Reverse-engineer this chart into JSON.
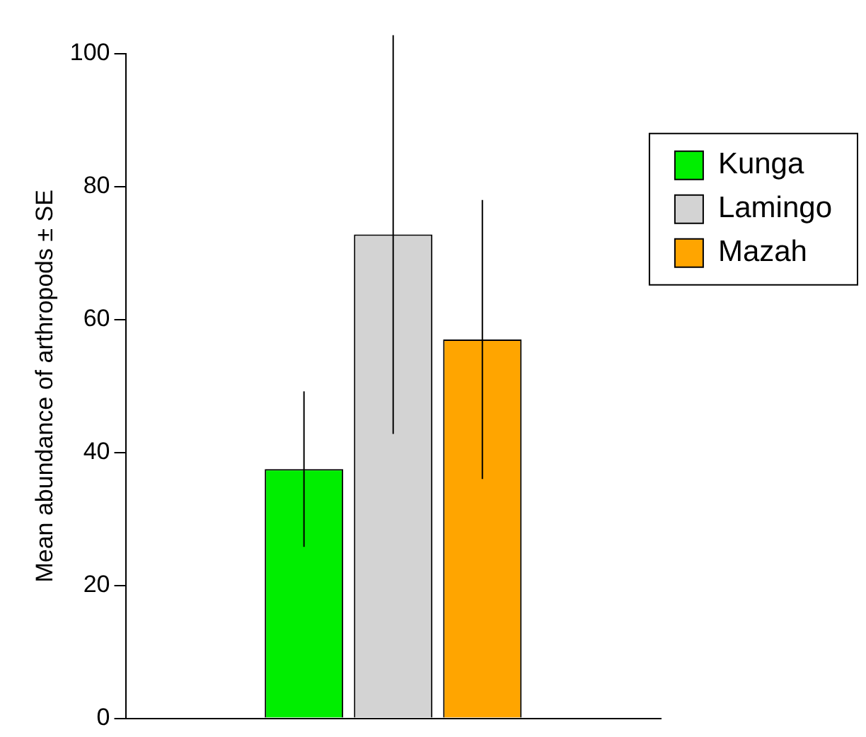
{
  "chart_data": {
    "type": "bar",
    "ylabel": "Mean abundance of arthropods ± SE",
    "categories": [
      null
    ],
    "series": [
      {
        "name": "Kunga",
        "color": "#00ee00",
        "values": [
          37.5
        ],
        "errors": [
          11.7
        ]
      },
      {
        "name": "Lamingo",
        "color": "#d3d3d3",
        "values": [
          72.8
        ],
        "errors": [
          30
        ]
      },
      {
        "name": "Mazah",
        "color": "#ffa500",
        "values": [
          57
        ],
        "errors": [
          21
        ]
      }
    ],
    "ylim": [
      0,
      100
    ],
    "yticks": [
      0,
      20,
      40,
      60,
      80,
      100
    ],
    "tick_labels": "y",
    "grid": false,
    "legend": "top right"
  }
}
